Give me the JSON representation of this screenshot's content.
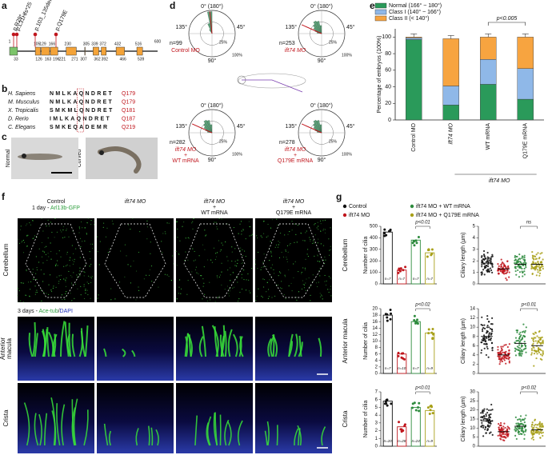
{
  "panel_labels": [
    "a",
    "b",
    "c",
    "d",
    "e",
    "f",
    "g"
  ],
  "a": {
    "mutations": [
      "p.R29*",
      "p.L31Hfs*25",
      "p.103_135del",
      "p.Q179E"
    ],
    "start": 1,
    "end": 600,
    "top_numbers": [
      105,
      129,
      166,
      230,
      305,
      339,
      372,
      432,
      516
    ],
    "bottom_numbers": [
      33,
      126,
      163,
      196,
      221,
      271,
      307,
      362,
      392,
      466,
      539
    ]
  },
  "b": {
    "rows": [
      {
        "species": "H. Sapiens",
        "sequence": "NMLKAQNDRET",
        "residue": "Q179"
      },
      {
        "species": "M. Musculus",
        "sequence": "NMLKAQNDRET",
        "residue": "Q179"
      },
      {
        "species": "X. Tropicalis",
        "sequence": "SMKMLQNDRET",
        "residue": "Q181"
      },
      {
        "species": "D. Rerio",
        "sequence": "IMLKAQNDRET",
        "residue": "Q187"
      },
      {
        "species": "C. Elegans",
        "sequence": "SMKEQADEMR",
        "residue": "Q219"
      }
    ]
  },
  "c": {
    "labels": [
      "Normal",
      "Curved"
    ]
  },
  "d": {
    "axis_labels": {
      "top": "0° (180°)",
      "right": "45°",
      "bottom": "90°",
      "left": "135°",
      "inner": "25%",
      "outer": "100%"
    },
    "plots": [
      {
        "n": "n=99",
        "label": [
          "Control MO"
        ]
      },
      {
        "n": "n=253",
        "label": [
          "ift74 MO"
        ]
      },
      {
        "n": "n=282",
        "label": [
          "ift74 MO",
          "+",
          "WT mRNA"
        ]
      },
      {
        "n": "n=278",
        "label": [
          "ift74 MO",
          "+",
          "Q179E mRNA"
        ]
      }
    ]
  },
  "e": {
    "type": "bar",
    "ylabel": "Percentage of embryos (100%)",
    "categories": [
      "Control MO",
      "ift74 MO",
      "WT mRNA",
      "Q179E mRNA"
    ],
    "group_label": "ift74 MO",
    "p_value": "p<0.005",
    "ylim": [
      0,
      110
    ],
    "yticks": [
      0,
      20,
      40,
      60,
      80,
      100
    ],
    "series": [
      {
        "name": "Normal (166° ~ 180°)",
        "color": "#2a9a5a",
        "values": [
          97,
          18,
          43,
          25
        ]
      },
      {
        "name": "Class I (140° ~ 166°)",
        "color": "#8fb8e8",
        "values": [
          2,
          23,
          30,
          37
        ]
      },
      {
        "name": "Class II (< 140°)",
        "color": "#f7a440",
        "values": [
          1,
          57,
          27,
          38
        ]
      }
    ]
  },
  "f": {
    "columns": [
      [
        "Control"
      ],
      [
        "ift74 MO"
      ],
      [
        "ift74 MO",
        "+",
        "WT mRNA"
      ],
      [
        "ift74 MO",
        "+",
        "Q179E mRNA"
      ]
    ],
    "day1": [
      "1 day - ",
      "Arl13b-GFP"
    ],
    "day3": [
      "3 days - ",
      "Ace-tub",
      "/",
      "DAPI"
    ],
    "rows": [
      [
        "Cerebellum"
      ],
      [
        "Anterior",
        "macula"
      ],
      [
        "Crista"
      ]
    ]
  },
  "g": {
    "legend": [
      "Control",
      "ift74 MO",
      "ift74 MO + WT mRNA",
      "ift74 MO + Q179E mRNA"
    ],
    "colors": [
      "#111111",
      "#c0161d",
      "#2e8b3e",
      "#a8a019"
    ],
    "rows": [
      {
        "label": "Cerebellum",
        "count": {
          "ylabel": "Number of cilia",
          "ylim": [
            0,
            500
          ],
          "yticks": [
            0,
            100,
            200,
            300,
            400,
            500
          ],
          "values": [
            450,
            120,
            380,
            270
          ],
          "n_labels": [
            "n=7",
            "n=7",
            "n=7",
            "n=7"
          ],
          "p": "p<0.01"
        },
        "length": {
          "ylabel": "Ciliary length (µm)",
          "ylim": [
            0,
            5
          ],
          "yticks": [
            0,
            1,
            2,
            3,
            4,
            5
          ],
          "values": [
            1.8,
            1.3,
            1.7,
            1.7
          ],
          "p": "ns"
        }
      },
      {
        "label": "Anterior macula",
        "count": {
          "ylabel": "Number of cilia",
          "ylim": [
            0,
            20
          ],
          "yticks": [
            0,
            2,
            4,
            6,
            8,
            10,
            12,
            14,
            16,
            18,
            20
          ],
          "values": [
            18,
            6,
            16,
            12.5
          ],
          "n_labels": [
            "n=7",
            "n=10",
            "n=7",
            "n=9"
          ],
          "p": "p<0.02"
        },
        "length": {
          "ylabel": "Ciliary length (µm)",
          "ylim": [
            0,
            14
          ],
          "yticks": [
            0,
            2,
            4,
            6,
            8,
            10,
            12,
            14
          ],
          "values": [
            8,
            4,
            6.5,
            6
          ],
          "p": "p<0.01"
        }
      },
      {
        "label": "Crista",
        "count": {
          "ylabel": "Number of cilia",
          "ylim": [
            0,
            7
          ],
          "yticks": [
            0,
            1,
            2,
            3,
            4,
            5,
            6,
            7
          ],
          "values": [
            5.8,
            2.5,
            5,
            4.6
          ],
          "n_labels": [
            "n=20",
            "n=28",
            "n=24",
            "n=9"
          ],
          "p": "p<0.01"
        },
        "length": {
          "ylabel": "Ciliary length (µm)",
          "ylim": [
            0,
            30
          ],
          "yticks": [
            0,
            5,
            10,
            15,
            20,
            25,
            30
          ],
          "values": [
            14,
            8,
            11,
            9
          ],
          "p": "p<0.02"
        }
      }
    ]
  }
}
